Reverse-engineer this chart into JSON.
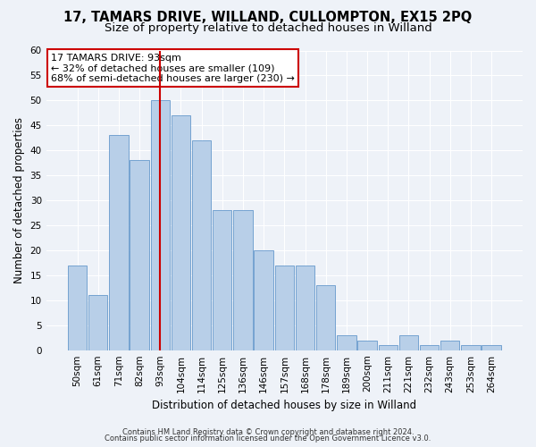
{
  "title_line1": "17, TAMARS DRIVE, WILLAND, CULLOMPTON, EX15 2PQ",
  "title_line2": "Size of property relative to detached houses in Willand",
  "xlabel": "Distribution of detached houses by size in Willand",
  "ylabel": "Number of detached properties",
  "footnote1": "Contains HM Land Registry data © Crown copyright and database right 2024.",
  "footnote2": "Contains public sector information licensed under the Open Government Licence v3.0.",
  "annotation_line1": "17 TAMARS DRIVE: 93sqm",
  "annotation_line2": "← 32% of detached houses are smaller (109)",
  "annotation_line3": "68% of semi-detached houses are larger (230) →",
  "bar_labels": [
    "50sqm",
    "61sqm",
    "71sqm",
    "82sqm",
    "93sqm",
    "104sqm",
    "114sqm",
    "125sqm",
    "136sqm",
    "146sqm",
    "157sqm",
    "168sqm",
    "178sqm",
    "189sqm",
    "200sqm",
    "211sqm",
    "221sqm",
    "232sqm",
    "243sqm",
    "253sqm",
    "264sqm"
  ],
  "bar_values": [
    17,
    11,
    43,
    38,
    50,
    47,
    42,
    28,
    28,
    20,
    17,
    17,
    13,
    3,
    2,
    1,
    3,
    1,
    2,
    1,
    1
  ],
  "highlight_index": 4,
  "bar_color": "#b8cfe8",
  "bar_edge_color": "#6699cc",
  "highlight_line_color": "#cc0000",
  "ylim": [
    0,
    60
  ],
  "yticks": [
    0,
    5,
    10,
    15,
    20,
    25,
    30,
    35,
    40,
    45,
    50,
    55,
    60
  ],
  "background_color": "#eef2f8",
  "plot_bg_color": "#eef2f8",
  "annotation_box_color": "#ffffff",
  "annotation_box_edge": "#cc0000",
  "grid_color": "#ffffff",
  "title_fontsize": 10.5,
  "subtitle_fontsize": 9.5,
  "axis_label_fontsize": 8.5,
  "tick_fontsize": 7.5,
  "annotation_fontsize": 8
}
